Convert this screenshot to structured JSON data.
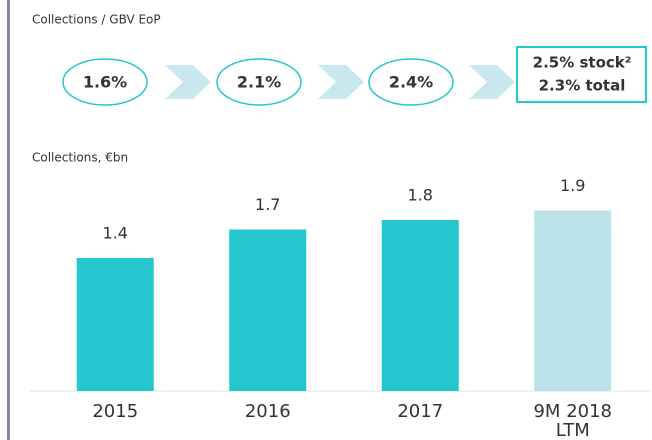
{
  "header": {
    "title": "Collections / GBV EoP",
    "ratios": [
      "1.6%",
      "2.1%",
      "2.4%"
    ],
    "last_ratio": [
      "2.5% stock²",
      "2.3% total"
    ]
  },
  "chart_data": {
    "type": "bar",
    "title": "Collections, €bn",
    "categories": [
      "2015",
      "2016",
      "2017",
      "9M 2018 LTM"
    ],
    "values": [
      1.4,
      1.7,
      1.8,
      1.9
    ],
    "colors": [
      "#26c6cf",
      "#26c6cf",
      "#26c6cf",
      "#bde3ea"
    ]
  }
}
